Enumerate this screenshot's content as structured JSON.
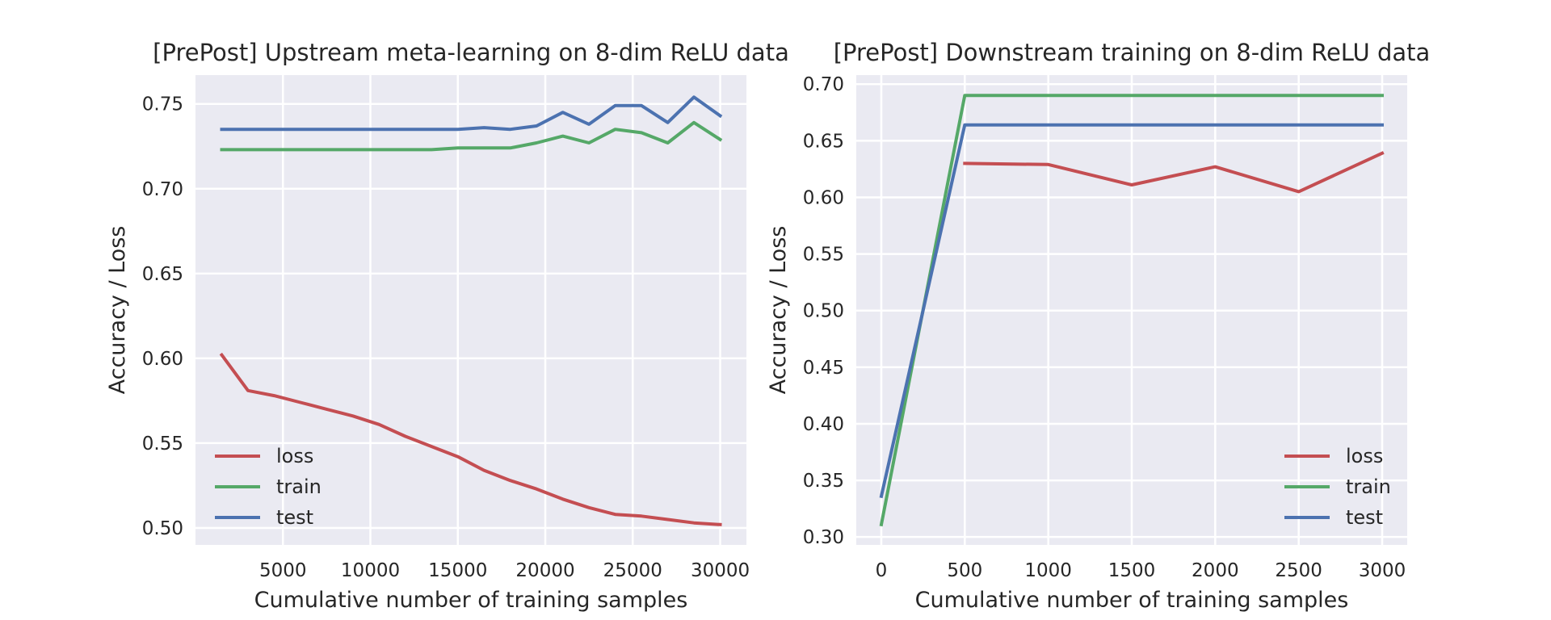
{
  "chart_data": [
    {
      "type": "line",
      "title": "[PrePost] Upstream meta-learning on 8-dim ReLU data",
      "xlabel": "Cumulative number of training samples",
      "ylabel": "Accuracy / Loss",
      "xlim": [
        0,
        31500
      ],
      "ylim": [
        0.49,
        0.767
      ],
      "xticks": [
        5000,
        10000,
        15000,
        20000,
        25000,
        30000
      ],
      "yticks": [
        0.5,
        0.55,
        0.6,
        0.65,
        0.7,
        0.75
      ],
      "ytick_format": 2,
      "legend_loc": "lower-left",
      "x": [
        1500,
        3000,
        4500,
        6000,
        7500,
        9000,
        10500,
        12000,
        13500,
        15000,
        16500,
        18000,
        19500,
        21000,
        22500,
        24000,
        25500,
        27000,
        28500,
        30000
      ],
      "series": [
        {
          "name": "loss",
          "color": "#c44e52",
          "values": [
            0.602,
            0.581,
            0.578,
            0.574,
            0.57,
            0.566,
            0.561,
            0.554,
            0.548,
            0.542,
            0.534,
            0.528,
            0.523,
            0.517,
            0.512,
            0.508,
            0.507,
            0.505,
            0.503,
            0.502
          ]
        },
        {
          "name": "train",
          "color": "#55a868",
          "values": [
            0.723,
            0.723,
            0.723,
            0.723,
            0.723,
            0.723,
            0.723,
            0.723,
            0.723,
            0.724,
            0.724,
            0.724,
            0.727,
            0.731,
            0.727,
            0.735,
            0.733,
            0.727,
            0.739,
            0.729
          ]
        },
        {
          "name": "test",
          "color": "#4c72b0",
          "values": [
            0.735,
            0.735,
            0.735,
            0.735,
            0.735,
            0.735,
            0.735,
            0.735,
            0.735,
            0.735,
            0.736,
            0.735,
            0.737,
            0.745,
            0.738,
            0.749,
            0.749,
            0.739,
            0.754,
            0.743
          ]
        }
      ]
    },
    {
      "type": "line",
      "title": "[PrePost] Downstream training on 8-dim ReLU data",
      "xlabel": "Cumulative number of training samples",
      "ylabel": "Accuracy / Loss",
      "xlim": [
        -150,
        3150
      ],
      "ylim": [
        0.293,
        0.708
      ],
      "xticks": [
        0,
        500,
        1000,
        1500,
        2000,
        2500,
        3000
      ],
      "yticks": [
        0.3,
        0.35,
        0.4,
        0.45,
        0.5,
        0.55,
        0.6,
        0.65,
        0.7
      ],
      "ytick_format": 2,
      "legend_loc": "lower-right",
      "x": [
        0,
        500,
        1000,
        1500,
        2000,
        2500,
        3000
      ],
      "series": [
        {
          "name": "loss",
          "color": "#c44e52",
          "values": [
            null,
            0.63,
            0.629,
            0.611,
            0.627,
            0.605,
            0.639
          ]
        },
        {
          "name": "train",
          "color": "#55a868",
          "values": [
            0.311,
            0.69,
            0.69,
            0.69,
            0.69,
            0.69,
            0.69
          ]
        },
        {
          "name": "test",
          "color": "#4c72b0",
          "values": [
            0.336,
            0.664,
            0.664,
            0.664,
            0.664,
            0.664,
            0.664
          ]
        }
      ]
    }
  ]
}
